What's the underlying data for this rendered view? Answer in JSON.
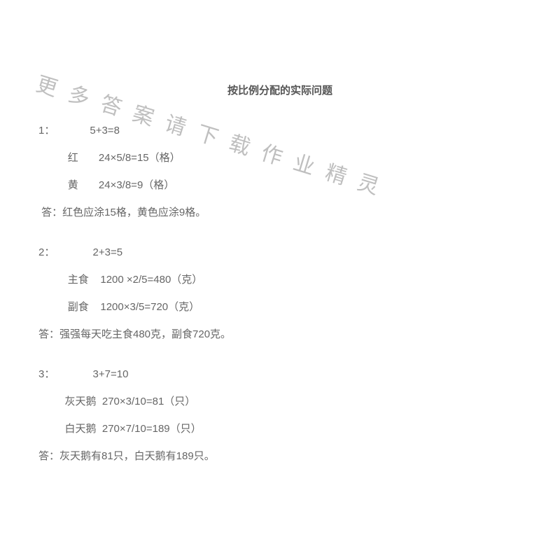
{
  "title": "按比例分配的实际问题",
  "watermark_text": "更多答案请下载作业精灵",
  "problems": [
    {
      "num": "1：",
      "sum": "5+3=8",
      "rows": [
        {
          "label": "红",
          "calc": "24×5/8=15（格）"
        },
        {
          "label": "黄",
          "calc": "24×3/8=9（格）"
        }
      ],
      "answer": " 答：红色应涂15格，黄色应涂9格。"
    },
    {
      "num": "2：",
      "sum": " 2+3=5",
      "rows": [
        {
          "label": "主食",
          "calc": "1200 ×2/5=480（克）"
        },
        {
          "label": "副食",
          "calc": "1200×3/5=720（克）"
        }
      ],
      "answer": "答：强强每天吃主食480克，副食720克。"
    },
    {
      "num": "3：",
      "sum": " 3+7=10",
      "rows": [
        {
          "label": "灰天鹅",
          "calc": "270×3/10=81（只）"
        },
        {
          "label": "白天鹅",
          "calc": "270×7/10=189（只）"
        }
      ],
      "answer": "答：灰天鹅有81只，白天鹅有189只。"
    }
  ],
  "colors": {
    "text": "#666666",
    "watermark": "#bfbfbf",
    "background": "#ffffff"
  }
}
